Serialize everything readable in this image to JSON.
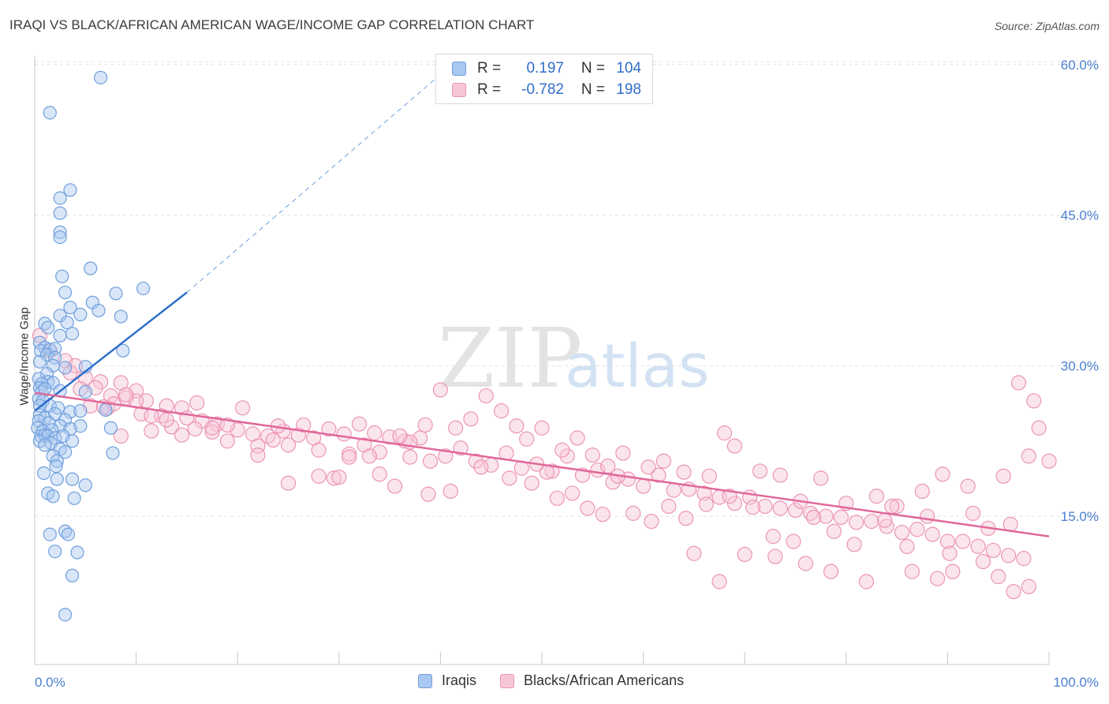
{
  "title": "IRAQI VS BLACK/AFRICAN AMERICAN WAGE/INCOME GAP CORRELATION CHART",
  "source": "Source: ZipAtlas.com",
  "watermark": {
    "zip": "ZIP",
    "atlas": "atlas"
  },
  "legend_stats": [
    {
      "r_label": "R =",
      "r_value": "0.197",
      "n_label": "N =",
      "n_value": "104"
    },
    {
      "r_label": "R =",
      "r_value": "-0.782",
      "n_label": "N =",
      "n_value": "198"
    }
  ],
  "colors": {
    "iraqi": "#6f9fdc",
    "iraqi_fill": "#a9c8f0",
    "iraqi_line": "#2f6ecb",
    "black": "#ec94b2",
    "black_fill": "#f7c6d6",
    "black_line": "#e0699a",
    "tick_text": "#4a7fd1"
  },
  "chart_data": {
    "type": "scatter",
    "title": "IRAQI VS BLACK/AFRICAN AMERICAN WAGE/INCOME GAP CORRELATION CHART",
    "xlabel": "",
    "ylabel": "Wage/Income Gap",
    "xlim": [
      0,
      100
    ],
    "ylim": [
      0,
      62
    ],
    "x_tick_labels": [
      "0.0%",
      "100.0%"
    ],
    "y_ticks": [
      15,
      30,
      45,
      60
    ],
    "y_tick_labels": [
      "15.0%",
      "30.0%",
      "45.0%",
      "60.0%"
    ],
    "grid": true,
    "legend_position": "bottom",
    "series": [
      {
        "name": "Iraqis",
        "r": 0.197,
        "n": 104,
        "trend": {
          "x0": 0,
          "y0": 25.5,
          "x1": 15,
          "y1": 37.3,
          "dashed_to_x": 40,
          "dashed_to_y": 59
        },
        "points": [
          [
            6.5,
            58.7
          ],
          [
            1.5,
            55.2
          ],
          [
            3.5,
            47.5
          ],
          [
            2.5,
            46.7
          ],
          [
            2.5,
            45.2
          ],
          [
            2.5,
            43.3
          ],
          [
            2.5,
            42.8
          ],
          [
            5.5,
            39.7
          ],
          [
            2.7,
            38.9
          ],
          [
            3.0,
            37.3
          ],
          [
            8.0,
            37.2
          ],
          [
            10.7,
            37.7
          ],
          [
            5.7,
            36.3
          ],
          [
            3.5,
            35.8
          ],
          [
            6.3,
            35.5
          ],
          [
            2.5,
            35.0
          ],
          [
            4.5,
            35.1
          ],
          [
            8.5,
            34.9
          ],
          [
            1.0,
            34.2
          ],
          [
            3.2,
            34.3
          ],
          [
            1.3,
            33.8
          ],
          [
            2.5,
            33.0
          ],
          [
            3.7,
            33.2
          ],
          [
            0.5,
            32.3
          ],
          [
            1.0,
            31.8
          ],
          [
            0.6,
            31.5
          ],
          [
            1.5,
            31.6
          ],
          [
            2.0,
            31.7
          ],
          [
            8.7,
            31.5
          ],
          [
            1.2,
            31.1
          ],
          [
            2.0,
            30.8
          ],
          [
            0.5,
            30.4
          ],
          [
            1.8,
            30.0
          ],
          [
            3.0,
            29.8
          ],
          [
            5.0,
            29.9
          ],
          [
            1.2,
            29.2
          ],
          [
            0.4,
            28.7
          ],
          [
            1.3,
            28.4
          ],
          [
            0.7,
            28.2
          ],
          [
            1.8,
            28.3
          ],
          [
            0.5,
            27.8
          ],
          [
            0.7,
            27.4
          ],
          [
            1.0,
            27.7
          ],
          [
            2.5,
            27.5
          ],
          [
            5.0,
            27.4
          ],
          [
            0.4,
            26.7
          ],
          [
            0.8,
            26.5
          ],
          [
            1.5,
            26.0
          ],
          [
            0.5,
            26.0
          ],
          [
            2.3,
            25.8
          ],
          [
            3.5,
            25.4
          ],
          [
            4.5,
            25.5
          ],
          [
            7.0,
            25.6
          ],
          [
            0.5,
            25.1
          ],
          [
            1.0,
            24.8
          ],
          [
            2.0,
            25.2
          ],
          [
            3.0,
            24.6
          ],
          [
            0.4,
            24.5
          ],
          [
            1.4,
            24.3
          ],
          [
            2.5,
            24.0
          ],
          [
            4.5,
            24.0
          ],
          [
            7.5,
            23.8
          ],
          [
            0.3,
            23.8
          ],
          [
            0.8,
            23.5
          ],
          [
            1.7,
            23.6
          ],
          [
            3.5,
            23.7
          ],
          [
            0.6,
            23.0
          ],
          [
            1.0,
            23.1
          ],
          [
            1.3,
            23.0
          ],
          [
            2.0,
            22.8
          ],
          [
            2.8,
            23.0
          ],
          [
            0.5,
            22.5
          ],
          [
            1.6,
            22.3
          ],
          [
            3.7,
            22.5
          ],
          [
            1.0,
            22.1
          ],
          [
            2.5,
            21.7
          ],
          [
            3.0,
            21.4
          ],
          [
            7.7,
            21.3
          ],
          [
            1.8,
            21.0
          ],
          [
            2.2,
            20.5
          ],
          [
            2.1,
            20.0
          ],
          [
            0.9,
            19.3
          ],
          [
            2.2,
            18.7
          ],
          [
            3.7,
            18.7
          ],
          [
            5.0,
            18.1
          ],
          [
            1.3,
            17.3
          ],
          [
            1.8,
            17.0
          ],
          [
            3.9,
            16.8
          ],
          [
            1.5,
            13.2
          ],
          [
            3.0,
            13.5
          ],
          [
            3.3,
            13.2
          ],
          [
            2.0,
            11.5
          ],
          [
            4.2,
            11.4
          ],
          [
            3.7,
            9.1
          ],
          [
            3.0,
            5.2
          ]
        ]
      },
      {
        "name": "Blacks/African Americans",
        "r": -0.782,
        "n": 198,
        "trend": {
          "x0": 0,
          "y0": 27.3,
          "x1": 100,
          "y1": 13.0
        },
        "points": [
          [
            0.5,
            33.0
          ],
          [
            1.5,
            31.5
          ],
          [
            3.0,
            30.5
          ],
          [
            4.0,
            30.0
          ],
          [
            3.5,
            29.3
          ],
          [
            5.0,
            28.8
          ],
          [
            6.5,
            28.4
          ],
          [
            8.5,
            28.3
          ],
          [
            10.0,
            27.5
          ],
          [
            4.5,
            27.7
          ],
          [
            6.0,
            27.8
          ],
          [
            7.5,
            27.0
          ],
          [
            9.0,
            26.8
          ],
          [
            11.0,
            26.5
          ],
          [
            13.0,
            26.0
          ],
          [
            14.5,
            25.8
          ],
          [
            5.5,
            26.0
          ],
          [
            7.2,
            25.8
          ],
          [
            10.5,
            25.2
          ],
          [
            12.5,
            25.0
          ],
          [
            15.0,
            24.8
          ],
          [
            16.5,
            24.5
          ],
          [
            18.0,
            24.2
          ],
          [
            13.5,
            23.9
          ],
          [
            15.8,
            23.7
          ],
          [
            17.5,
            23.4
          ],
          [
            20.0,
            23.6
          ],
          [
            21.5,
            23.2
          ],
          [
            23.0,
            23.0
          ],
          [
            24.5,
            23.5
          ],
          [
            26.0,
            23.1
          ],
          [
            27.5,
            22.8
          ],
          [
            29.0,
            23.7
          ],
          [
            30.5,
            23.2
          ],
          [
            32.0,
            24.2
          ],
          [
            33.5,
            23.3
          ],
          [
            35.0,
            22.9
          ],
          [
            36.5,
            22.5
          ],
          [
            38.0,
            22.8
          ],
          [
            8.5,
            23.0
          ],
          [
            11.5,
            23.5
          ],
          [
            19.0,
            22.5
          ],
          [
            22.0,
            22.0
          ],
          [
            25.0,
            22.1
          ],
          [
            28.0,
            21.6
          ],
          [
            31.0,
            21.2
          ],
          [
            34.0,
            21.4
          ],
          [
            37.0,
            20.9
          ],
          [
            39.0,
            20.5
          ],
          [
            40.5,
            21.0
          ],
          [
            42.0,
            21.8
          ],
          [
            43.5,
            20.5
          ],
          [
            45.0,
            20.1
          ],
          [
            46.5,
            21.3
          ],
          [
            48.0,
            19.8
          ],
          [
            49.5,
            20.2
          ],
          [
            51.0,
            19.5
          ],
          [
            52.5,
            21.0
          ],
          [
            54.0,
            19.1
          ],
          [
            55.5,
            19.6
          ],
          [
            57.0,
            18.4
          ],
          [
            58.5,
            18.7
          ],
          [
            60.0,
            18.0
          ],
          [
            61.5,
            19.1
          ],
          [
            63.0,
            17.6
          ],
          [
            64.5,
            17.7
          ],
          [
            66.0,
            17.3
          ],
          [
            67.5,
            16.9
          ],
          [
            69.0,
            16.3
          ],
          [
            70.5,
            16.9
          ],
          [
            72.0,
            16.0
          ],
          [
            73.5,
            15.8
          ],
          [
            75.0,
            15.6
          ],
          [
            76.5,
            15.3
          ],
          [
            78.0,
            15.0
          ],
          [
            79.5,
            14.9
          ],
          [
            81.0,
            14.4
          ],
          [
            82.5,
            14.5
          ],
          [
            84.0,
            14.0
          ],
          [
            85.5,
            13.4
          ],
          [
            87.0,
            13.7
          ],
          [
            88.5,
            13.2
          ],
          [
            90.0,
            12.5
          ],
          [
            91.5,
            12.5
          ],
          [
            93.0,
            12.0
          ],
          [
            94.5,
            11.6
          ],
          [
            96.0,
            11.1
          ],
          [
            97.5,
            10.8
          ],
          [
            98.0,
            8.0
          ],
          [
            96.5,
            7.5
          ],
          [
            93.5,
            10.5
          ],
          [
            90.5,
            9.5
          ],
          [
            89.0,
            8.8
          ],
          [
            86.5,
            9.5
          ],
          [
            82.0,
            8.5
          ],
          [
            78.5,
            9.5
          ],
          [
            76.0,
            10.3
          ],
          [
            73.0,
            11.0
          ],
          [
            70.0,
            11.2
          ],
          [
            67.5,
            8.5
          ],
          [
            65.0,
            11.3
          ],
          [
            97.0,
            28.3
          ],
          [
            98.5,
            26.5
          ],
          [
            99.0,
            23.8
          ],
          [
            100.0,
            20.5
          ],
          [
            98.0,
            21.0
          ],
          [
            95.5,
            19.0
          ],
          [
            92.0,
            18.0
          ],
          [
            89.5,
            19.2
          ],
          [
            87.5,
            17.5
          ],
          [
            85.0,
            16.0
          ],
          [
            83.0,
            17.0
          ],
          [
            80.0,
            16.3
          ],
          [
            77.5,
            18.8
          ],
          [
            75.5,
            16.5
          ],
          [
            73.5,
            19.1
          ],
          [
            71.5,
            19.5
          ],
          [
            69.0,
            22.0
          ],
          [
            68.0,
            23.3
          ],
          [
            66.5,
            19.0
          ],
          [
            64.0,
            19.4
          ],
          [
            62.0,
            20.5
          ],
          [
            60.5,
            19.9
          ],
          [
            58.0,
            21.3
          ],
          [
            56.5,
            20.0
          ],
          [
            55.0,
            21.1
          ],
          [
            53.5,
            22.8
          ],
          [
            52.0,
            21.6
          ],
          [
            50.5,
            19.4
          ],
          [
            49.0,
            18.3
          ],
          [
            47.5,
            24.0
          ],
          [
            46.0,
            25.5
          ],
          [
            44.5,
            27.0
          ],
          [
            43.0,
            24.7
          ],
          [
            41.5,
            23.8
          ],
          [
            40.0,
            27.6
          ],
          [
            38.5,
            24.1
          ],
          [
            37.0,
            22.4
          ],
          [
            35.5,
            18.0
          ],
          [
            34.0,
            19.2
          ],
          [
            32.5,
            22.1
          ],
          [
            31.0,
            20.9
          ],
          [
            29.5,
            18.8
          ],
          [
            28.0,
            19.0
          ],
          [
            26.5,
            24.1
          ],
          [
            25.0,
            18.3
          ],
          [
            23.5,
            22.6
          ],
          [
            22.0,
            21.1
          ],
          [
            20.5,
            25.8
          ],
          [
            19.0,
            24.1
          ],
          [
            17.5,
            23.8
          ],
          [
            16.0,
            26.3
          ],
          [
            14.5,
            23.1
          ],
          [
            13.0,
            24.6
          ],
          [
            11.5,
            25.0
          ],
          [
            10.0,
            26.5
          ],
          [
            9.0,
            27.1
          ],
          [
            7.8,
            26.2
          ],
          [
            6.8,
            25.9
          ],
          [
            24.0,
            24.0
          ],
          [
            30.0,
            18.9
          ],
          [
            33.0,
            21.0
          ],
          [
            36.0,
            23.0
          ],
          [
            38.8,
            17.2
          ],
          [
            41.0,
            17.5
          ],
          [
            44.0,
            19.9
          ],
          [
            46.8,
            18.8
          ],
          [
            48.5,
            22.7
          ],
          [
            50.0,
            23.8
          ],
          [
            51.5,
            16.8
          ],
          [
            53.0,
            17.3
          ],
          [
            54.5,
            15.8
          ],
          [
            56.0,
            15.2
          ],
          [
            57.5,
            19.0
          ],
          [
            59.0,
            15.3
          ],
          [
            60.8,
            14.5
          ],
          [
            62.5,
            16.0
          ],
          [
            64.2,
            14.8
          ],
          [
            66.2,
            16.2
          ],
          [
            68.5,
            17.0
          ],
          [
            70.8,
            15.9
          ],
          [
            72.8,
            13.0
          ],
          [
            74.8,
            12.5
          ],
          [
            76.8,
            14.9
          ],
          [
            78.8,
            13.5
          ],
          [
            80.8,
            12.2
          ],
          [
            83.8,
            14.6
          ],
          [
            86.0,
            12.0
          ],
          [
            88.0,
            15.0
          ],
          [
            90.2,
            11.3
          ],
          [
            92.5,
            15.3
          ],
          [
            94.0,
            13.8
          ],
          [
            96.2,
            14.2
          ],
          [
            95.0,
            9.0
          ],
          [
            84.5,
            16.0
          ]
        ]
      }
    ]
  }
}
